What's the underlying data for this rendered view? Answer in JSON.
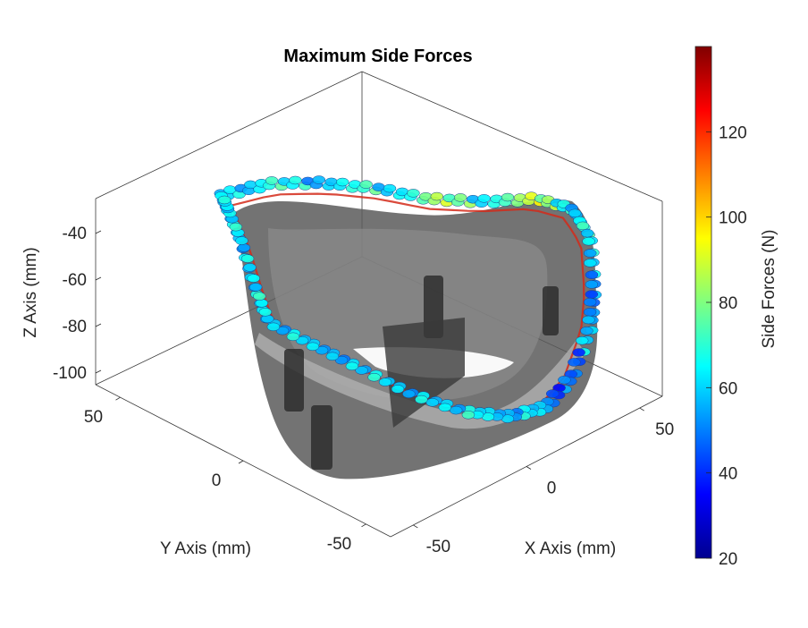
{
  "chart_data": {
    "type": "scatter",
    "title": "Maximum Side Forces",
    "xlabel": "X Axis (mm)",
    "ylabel": "Y Axis (mm)",
    "zlabel": "Z Axis (mm)",
    "x_ticks": [
      "-50",
      "0",
      "50"
    ],
    "y_ticks": [
      "-50",
      "0",
      "50"
    ],
    "z_ticks": [
      "-100",
      "-80",
      "-60",
      "-40"
    ],
    "xlim": [
      -60,
      60
    ],
    "ylim": [
      -60,
      60
    ],
    "zlim": [
      -105,
      -25
    ],
    "colorbar": {
      "label": "Side Forces (N)",
      "ticks": [
        "20",
        "40",
        "60",
        "80",
        "100",
        "120"
      ],
      "range": [
        20,
        140
      ],
      "colormap": "jet"
    },
    "series": [
      {
        "description": "Side-force scatter along the rim path",
        "values": [
          {
            "t": 0.0,
            "f": 62
          },
          {
            "t": 0.02,
            "f": 58
          },
          {
            "t": 0.04,
            "f": 70
          },
          {
            "t": 0.06,
            "f": 66
          },
          {
            "t": 0.08,
            "f": 55
          },
          {
            "t": 0.1,
            "f": 64
          },
          {
            "t": 0.12,
            "f": 72
          },
          {
            "t": 0.14,
            "f": 60
          },
          {
            "t": 0.16,
            "f": 68
          },
          {
            "t": 0.18,
            "f": 85
          },
          {
            "t": 0.2,
            "f": 78
          },
          {
            "t": 0.22,
            "f": 62
          },
          {
            "t": 0.24,
            "f": 74
          },
          {
            "t": 0.26,
            "f": 90
          },
          {
            "t": 0.28,
            "f": 82
          },
          {
            "t": 0.3,
            "f": 66
          },
          {
            "t": 0.32,
            "f": 58
          },
          {
            "t": 0.34,
            "f": 71
          },
          {
            "t": 0.36,
            "f": 64
          },
          {
            "t": 0.38,
            "f": 60
          },
          {
            "t": 0.4,
            "f": 52
          },
          {
            "t": 0.42,
            "f": 48
          },
          {
            "t": 0.44,
            "f": 56
          },
          {
            "t": 0.46,
            "f": 61
          },
          {
            "t": 0.48,
            "f": 45
          },
          {
            "t": 0.5,
            "f": 50
          },
          {
            "t": 0.52,
            "f": 42
          },
          {
            "t": 0.54,
            "f": 58
          },
          {
            "t": 0.56,
            "f": 63
          },
          {
            "t": 0.58,
            "f": 55
          },
          {
            "t": 0.6,
            "f": 60
          },
          {
            "t": 0.62,
            "f": 66
          },
          {
            "t": 0.64,
            "f": 59
          },
          {
            "t": 0.66,
            "f": 62
          },
          {
            "t": 0.68,
            "f": 57
          },
          {
            "t": 0.7,
            "f": 64
          },
          {
            "t": 0.72,
            "f": 60
          },
          {
            "t": 0.74,
            "f": 55
          },
          {
            "t": 0.76,
            "f": 58
          },
          {
            "t": 0.78,
            "f": 63
          },
          {
            "t": 0.8,
            "f": 57
          },
          {
            "t": 0.82,
            "f": 61
          },
          {
            "t": 0.84,
            "f": 66
          },
          {
            "t": 0.86,
            "f": 59
          },
          {
            "t": 0.88,
            "f": 62
          },
          {
            "t": 0.9,
            "f": 56
          },
          {
            "t": 0.92,
            "f": 65
          },
          {
            "t": 0.94,
            "f": 60
          },
          {
            "t": 0.96,
            "f": 58
          },
          {
            "t": 0.98,
            "f": 63
          }
        ]
      }
    ]
  },
  "colors": {
    "axis": "#262626",
    "box_line": "#3a3a3a",
    "shell_dark": "#5a5a5a",
    "shell_mid": "#7a7a7a",
    "shell_light": "#a8a8a8",
    "peak_ring": "#d42a1a"
  }
}
